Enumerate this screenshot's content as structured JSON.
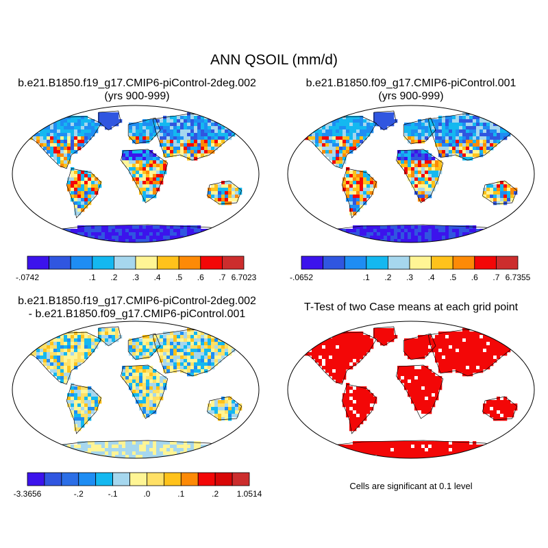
{
  "title": "ANN QSOIL (mm/d)",
  "panels": [
    {
      "id": "p1",
      "title_line1": "b.e21.B1850.f19_g17.CMIP6-piControl-2deg.002",
      "title_line2": "(yrs 900-999)"
    },
    {
      "id": "p2",
      "title_line1": "b.e21.B1850.f09_g17.CMIP6-piControl.001",
      "title_line2": "(yrs 900-999)"
    },
    {
      "id": "p3",
      "title_line1": "b.e21.B1850.f19_g17.CMIP6-piControl-2deg.002",
      "title_line2": "- b.e21.B1850.f09_g17.CMIP6-piControl.001"
    },
    {
      "id": "p4",
      "title_line1": "T-Test of two Case means at each grid point"
    }
  ],
  "colorbars": [
    {
      "id": "cb1",
      "colors": [
        "#3c13ec",
        "#3056e0",
        "#1e8df3",
        "#14b8f0",
        "#a6d7ee",
        "#fff595",
        "#ffc21b",
        "#fd8a06",
        "#f30707",
        "#cc2d2d"
      ],
      "labels": [
        "-.0742",
        "",
        "",
        ".1",
        ".2",
        ".3",
        ".4",
        ".5",
        ".6",
        ".7",
        "6.7023"
      ]
    },
    {
      "id": "cb2",
      "colors": [
        "#3c13ec",
        "#3056e0",
        "#1e8df3",
        "#14b8f0",
        "#a6d7ee",
        "#fff595",
        "#ffc21b",
        "#fd8a06",
        "#f30707",
        "#cc2d2d"
      ],
      "labels": [
        "-.0652",
        "",
        "",
        ".1",
        ".2",
        ".3",
        ".4",
        ".5",
        ".6",
        ".7",
        "6.7355"
      ]
    },
    {
      "id": "cb3",
      "colors": [
        "#3c13ec",
        "#3056e0",
        "#2b6ee6",
        "#1e8df3",
        "#14b8f0",
        "#a6d7ee",
        "#fff595",
        "#ffe066",
        "#ffc21b",
        "#fd8a06",
        "#f30707",
        "#d80707",
        "#cc2d2d"
      ],
      "labels": [
        "-3.3656",
        "",
        "",
        "-.2",
        "",
        "-.1",
        "",
        ".0",
        "",
        ".1",
        "",
        ".2",
        "",
        "1.0514"
      ]
    }
  ],
  "significance_note": "Cells are significant at 0.1 level",
  "colors": {
    "land_low": "#3c13ec",
    "land_mid": "#a6d7ee",
    "land_high": "#f30707",
    "significant": "#f30707",
    "ocean": "#ffffff"
  }
}
